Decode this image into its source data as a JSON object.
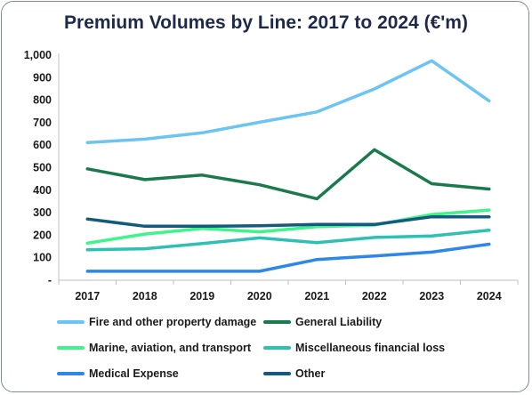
{
  "chart_data": {
    "type": "line",
    "title": "Premium Volumes by Line: 2017 to 2024 (€'m)",
    "categories": [
      "2017",
      "2018",
      "2019",
      "2020",
      "2021",
      "2022",
      "2023",
      "2024"
    ],
    "y_ticks": [
      "-",
      "100",
      "200",
      "300",
      "400",
      "500",
      "600",
      "700",
      "800",
      "900",
      "1,000"
    ],
    "ylim": [
      0,
      1000
    ],
    "legend_position": "bottom",
    "grid": false,
    "series": [
      {
        "name": "Fire and other property damage",
        "color": "#6cc4f2",
        "values": [
          612,
          627,
          655,
          702,
          748,
          850,
          975,
          797
        ]
      },
      {
        "name": "General Liability",
        "color": "#1b7a4c",
        "values": [
          495,
          447,
          467,
          424,
          362,
          580,
          429,
          405
        ]
      },
      {
        "name": "Marine, aviation, and transport",
        "color": "#3ef58a",
        "values": [
          165,
          205,
          230,
          215,
          238,
          245,
          292,
          312
        ]
      },
      {
        "name": "Miscellaneous financial loss",
        "color": "#2ec0b5",
        "values": [
          135,
          140,
          163,
          188,
          167,
          190,
          197,
          222
        ]
      },
      {
        "name": "Medical Expense",
        "color": "#2e86e6",
        "values": [
          40,
          40,
          40,
          40,
          92,
          108,
          125,
          160
        ]
      },
      {
        "name": "Other",
        "color": "#145a7e",
        "values": [
          272,
          240,
          240,
          242,
          248,
          248,
          282,
          282
        ]
      }
    ]
  }
}
